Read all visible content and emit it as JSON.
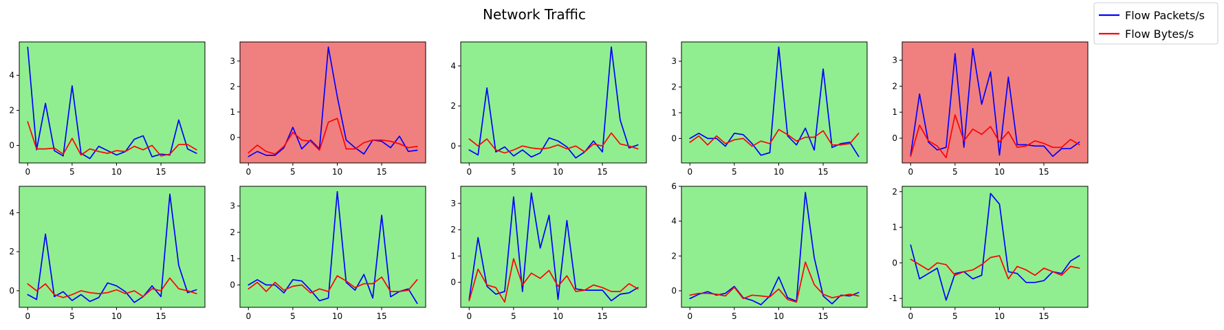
{
  "chart_data": {
    "type": "line",
    "title": "Network Traffic",
    "legend": {
      "placement": "top-right",
      "entries": [
        {
          "name": "Flow Packets/s",
          "color": "#0000ff"
        },
        {
          "name": "Flow Bytes/s",
          "color": "#ff0000"
        }
      ]
    },
    "x": [
      0,
      1,
      2,
      3,
      4,
      5,
      6,
      7,
      8,
      9,
      10,
      11,
      12,
      13,
      14,
      15,
      16,
      17,
      18,
      19
    ],
    "x_ticks": [
      0,
      5,
      10,
      15
    ],
    "panels": [
      {
        "background": "#90ee90",
        "y_ticks": [
          0,
          2,
          4
        ],
        "ylim": [
          -1.0,
          5.9
        ],
        "series": [
          {
            "name": "Flow Packets/s",
            "color": "#0000ff",
            "values": [
              5.6,
              -0.25,
              2.4,
              -0.3,
              -0.6,
              3.4,
              -0.45,
              -0.75,
              -0.05,
              -0.3,
              -0.55,
              -0.35,
              0.35,
              0.55,
              -0.65,
              -0.5,
              -0.55,
              1.45,
              -0.2,
              -0.45
            ]
          },
          {
            "name": "Flow Bytes/s",
            "color": "#ff0000",
            "values": [
              1.35,
              -0.2,
              -0.2,
              -0.15,
              -0.5,
              0.4,
              -0.55,
              -0.2,
              -0.35,
              -0.45,
              -0.3,
              -0.35,
              -0.05,
              -0.25,
              0.0,
              -0.6,
              -0.5,
              0.05,
              0.05,
              -0.25
            ]
          }
        ]
      },
      {
        "background": "#f08080",
        "y_ticks": [
          0,
          1,
          2,
          3
        ],
        "ylim": [
          -1.0,
          3.75
        ],
        "series": [
          {
            "name": "Flow Packets/s",
            "color": "#0000ff",
            "values": [
              -0.75,
              -0.55,
              -0.7,
              -0.7,
              -0.4,
              0.4,
              -0.45,
              -0.1,
              -0.45,
              3.55,
              1.6,
              -0.1,
              -0.4,
              -0.65,
              -0.1,
              -0.15,
              -0.4,
              0.05,
              -0.55,
              -0.5
            ]
          },
          {
            "name": "Flow Bytes/s",
            "color": "#ff0000",
            "values": [
              -0.6,
              -0.3,
              -0.55,
              -0.65,
              -0.35,
              0.2,
              -0.1,
              -0.15,
              -0.5,
              0.6,
              0.75,
              -0.45,
              -0.45,
              -0.2,
              -0.1,
              -0.1,
              -0.15,
              -0.25,
              -0.4,
              -0.35
            ]
          }
        ]
      },
      {
        "background": "#90ee90",
        "y_ticks": [
          0,
          2,
          4
        ],
        "ylim": [
          -0.85,
          5.2
        ],
        "series": [
          {
            "name": "Flow Packets/s",
            "color": "#0000ff",
            "values": [
              -0.2,
              -0.45,
              2.9,
              -0.3,
              -0.05,
              -0.5,
              -0.2,
              -0.55,
              -0.35,
              0.4,
              0.25,
              -0.05,
              -0.6,
              -0.3,
              0.25,
              -0.3,
              4.95,
              1.3,
              -0.1,
              0.05
            ]
          },
          {
            "name": "Flow Bytes/s",
            "color": "#ff0000",
            "values": [
              0.35,
              0.0,
              0.35,
              -0.2,
              -0.35,
              -0.2,
              0.0,
              -0.1,
              -0.15,
              -0.1,
              0.05,
              -0.15,
              0.0,
              -0.3,
              0.1,
              0.0,
              0.65,
              0.1,
              0.0,
              -0.15
            ]
          }
        ]
      },
      {
        "background": "#90ee90",
        "y_ticks": [
          0,
          1,
          2,
          3
        ],
        "ylim": [
          -0.95,
          3.75
        ],
        "series": [
          {
            "name": "Flow Packets/s",
            "color": "#0000ff",
            "values": [
              0.0,
              0.2,
              0.0,
              0.0,
              -0.3,
              0.2,
              0.15,
              -0.2,
              -0.65,
              -0.55,
              3.55,
              0.1,
              -0.25,
              0.4,
              -0.45,
              2.7,
              -0.35,
              -0.2,
              -0.15,
              -0.7
            ]
          },
          {
            "name": "Flow Bytes/s",
            "color": "#ff0000",
            "values": [
              -0.15,
              0.1,
              -0.25,
              0.1,
              -0.2,
              -0.05,
              0.0,
              -0.3,
              -0.1,
              -0.2,
              0.35,
              0.15,
              -0.1,
              0.05,
              0.05,
              0.3,
              -0.25,
              -0.25,
              -0.2,
              0.2
            ]
          }
        ]
      },
      {
        "background": "#f08080",
        "y_ticks": [
          0,
          1,
          2,
          3
        ],
        "ylim": [
          -0.95,
          3.7
        ],
        "series": [
          {
            "name": "Flow Packets/s",
            "color": "#0000ff",
            "values": [
              -0.65,
              1.7,
              -0.15,
              -0.45,
              -0.35,
              3.25,
              -0.35,
              3.45,
              1.3,
              2.55,
              -0.65,
              2.35,
              -0.25,
              -0.25,
              -0.3,
              -0.3,
              -0.7,
              -0.4,
              -0.4,
              -0.15
            ]
          },
          {
            "name": "Flow Bytes/s",
            "color": "#ff0000",
            "values": [
              -0.7,
              0.5,
              -0.1,
              -0.3,
              -0.75,
              0.9,
              -0.1,
              0.35,
              0.15,
              0.45,
              -0.15,
              0.25,
              -0.35,
              -0.3,
              -0.1,
              -0.2,
              -0.35,
              -0.35,
              -0.05,
              -0.25
            ]
          }
        ]
      },
      {
        "background": "#90ee90",
        "y_ticks": [
          0,
          2,
          4
        ],
        "ylim": [
          -0.85,
          5.35
        ],
        "series": [
          {
            "name": "Flow Packets/s",
            "color": "#0000ff",
            "values": [
              -0.2,
              -0.45,
              2.9,
              -0.3,
              -0.05,
              -0.5,
              -0.2,
              -0.55,
              -0.35,
              0.4,
              0.25,
              -0.05,
              -0.6,
              -0.3,
              0.25,
              -0.3,
              4.95,
              1.3,
              -0.1,
              0.05
            ]
          },
          {
            "name": "Flow Bytes/s",
            "color": "#ff0000",
            "values": [
              0.35,
              0.0,
              0.35,
              -0.2,
              -0.35,
              -0.2,
              0.0,
              -0.1,
              -0.15,
              -0.1,
              0.05,
              -0.15,
              0.0,
              -0.3,
              0.1,
              0.0,
              0.65,
              0.1,
              0.0,
              -0.15
            ]
          }
        ]
      },
      {
        "background": "#90ee90",
        "y_ticks": [
          0,
          1,
          2,
          3
        ],
        "ylim": [
          -0.85,
          3.75
        ],
        "series": [
          {
            "name": "Flow Packets/s",
            "color": "#0000ff",
            "values": [
              0.0,
              0.2,
              0.0,
              0.0,
              -0.3,
              0.2,
              0.15,
              -0.2,
              -0.6,
              -0.5,
              3.55,
              0.1,
              -0.2,
              0.4,
              -0.5,
              2.65,
              -0.45,
              -0.25,
              -0.15,
              -0.7
            ]
          },
          {
            "name": "Flow Bytes/s",
            "color": "#ff0000",
            "values": [
              -0.15,
              0.1,
              -0.25,
              0.1,
              -0.2,
              -0.05,
              0.0,
              -0.3,
              -0.15,
              -0.25,
              0.35,
              0.15,
              -0.1,
              0.05,
              0.05,
              0.3,
              -0.25,
              -0.25,
              -0.2,
              0.2
            ]
          }
        ]
      },
      {
        "background": "#90ee90",
        "y_ticks": [
          0,
          1,
          2,
          3
        ],
        "ylim": [
          -0.95,
          3.65
        ],
        "series": [
          {
            "name": "Flow Packets/s",
            "color": "#0000ff",
            "values": [
              -0.65,
              1.7,
              -0.15,
              -0.45,
              -0.35,
              3.25,
              -0.35,
              3.4,
              1.3,
              2.55,
              -0.65,
              2.35,
              -0.25,
              -0.3,
              -0.3,
              -0.3,
              -0.7,
              -0.45,
              -0.4,
              -0.2
            ]
          },
          {
            "name": "Flow Bytes/s",
            "color": "#ff0000",
            "values": [
              -0.7,
              0.5,
              -0.1,
              -0.2,
              -0.75,
              0.9,
              -0.1,
              0.35,
              0.15,
              0.45,
              -0.15,
              0.25,
              -0.35,
              -0.3,
              -0.1,
              -0.2,
              -0.35,
              -0.35,
              -0.05,
              -0.25
            ]
          }
        ]
      },
      {
        "background": "#90ee90",
        "y_ticks": [
          0,
          2,
          4,
          6
        ],
        "ylim": [
          -0.95,
          6.0
        ],
        "series": [
          {
            "name": "Flow Packets/s",
            "color": "#0000ff",
            "values": [
              -0.45,
              -0.2,
              -0.05,
              -0.25,
              -0.15,
              0.25,
              -0.4,
              -0.55,
              -0.8,
              -0.3,
              0.8,
              -0.4,
              -0.6,
              5.65,
              1.9,
              -0.3,
              -0.75,
              -0.25,
              -0.3,
              -0.1
            ]
          },
          {
            "name": "Flow Bytes/s",
            "color": "#ff0000",
            "values": [
              -0.25,
              -0.15,
              -0.15,
              -0.2,
              -0.3,
              0.2,
              -0.45,
              -0.25,
              -0.3,
              -0.35,
              0.1,
              -0.5,
              -0.65,
              1.65,
              0.35,
              -0.2,
              -0.4,
              -0.3,
              -0.2,
              -0.3
            ]
          }
        ]
      },
      {
        "background": "#90ee90",
        "y_ticks": [
          -1,
          0,
          1,
          2
        ],
        "ylim": [
          -1.25,
          2.15
        ],
        "series": [
          {
            "name": "Flow Packets/s",
            "color": "#0000ff",
            "values": [
              0.5,
              -0.45,
              -0.3,
              -0.15,
              -1.05,
              -0.3,
              -0.25,
              -0.45,
              -0.35,
              1.95,
              1.65,
              -0.25,
              -0.3,
              -0.55,
              -0.55,
              -0.5,
              -0.25,
              -0.3,
              0.05,
              0.2
            ]
          },
          {
            "name": "Flow Bytes/s",
            "color": "#ff0000",
            "values": [
              0.1,
              -0.05,
              -0.2,
              0.0,
              -0.05,
              -0.35,
              -0.25,
              -0.2,
              -0.05,
              0.15,
              0.2,
              -0.45,
              -0.1,
              -0.2,
              -0.35,
              -0.15,
              -0.25,
              -0.35,
              -0.1,
              -0.15
            ]
          }
        ]
      }
    ]
  }
}
